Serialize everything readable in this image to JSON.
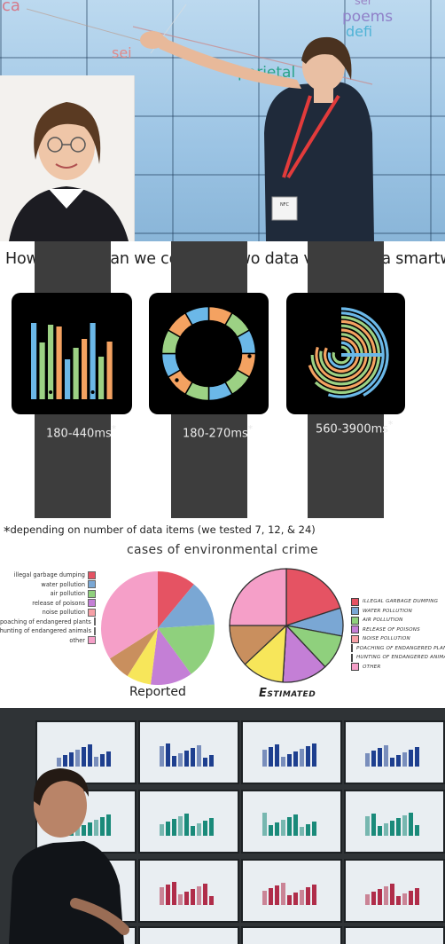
{
  "top_photo": {
    "word_cloud": [
      "ca",
      "sei",
      "ser",
      "poems",
      "defi",
      "parietal"
    ],
    "badge": "NFC"
  },
  "watch_section": {
    "title": "How quickly can we compare two data values on a smartwatch?",
    "watches": [
      {
        "type": "bar",
        "label": "180-440ms",
        "mark": "*"
      },
      {
        "type": "donut",
        "label": "180-270ms",
        "mark": "*"
      },
      {
        "type": "radial",
        "label": "560-3900ms",
        "mark": "*"
      }
    ],
    "footnote_star": "*",
    "footnote": "depending on number of data items (we tested 7, 12, & 24)",
    "colors": {
      "blue": "#6bb8e8",
      "green": "#9cd184",
      "orange": "#f4a261"
    }
  },
  "pie_section": {
    "title": "cases of environmental crime",
    "legend": [
      {
        "label": "illegal garbage dumping",
        "color": "#e55363"
      },
      {
        "label": "water pollution",
        "color": "#7aa7d4"
      },
      {
        "label": "air pollution",
        "color": "#8fd07d"
      },
      {
        "label": "release of poisons",
        "color": "#c47fd6"
      },
      {
        "label": "noise pollution",
        "color": "#f6a0a6"
      },
      {
        "label": "poaching of endangered plants",
        "color": "#f7e65a"
      },
      {
        "label": "hunting of endangered animals",
        "color": "#c98f5e"
      },
      {
        "label": "other",
        "color": "#f59fc8"
      }
    ],
    "legend_handwritten": [
      "illegal garbage dumping",
      "water pollution",
      "air pollution",
      "release of poisons",
      "noise pollution",
      "poaching of endangered plants",
      "hunting of endangered animals",
      "other"
    ],
    "reported_label": "Reported",
    "estimated_label": "Estimated"
  },
  "bottom_photo": {
    "panel_colors": [
      "#1e3f8f",
      "#1a8a7a",
      "#b02d4a"
    ]
  }
}
